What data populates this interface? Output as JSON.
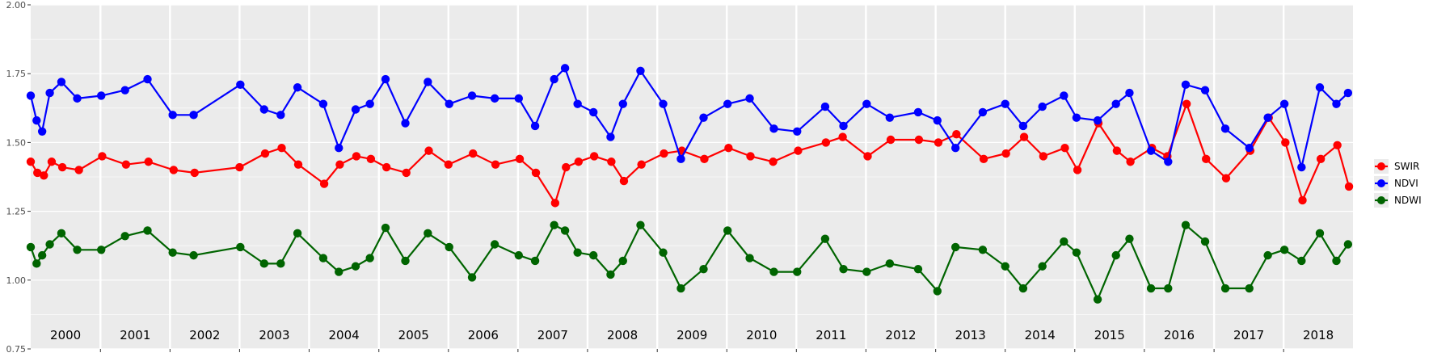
{
  "chart_data": {
    "type": "line",
    "title": "",
    "xlabel": "",
    "ylabel": "",
    "xlim": [
      "2000-01-01",
      "2018-12-31"
    ],
    "ylim": [
      0.75,
      2.0
    ],
    "y_ticks": [
      "0.75",
      "1.00",
      "1.25",
      "1.50",
      "1.75",
      "2.00"
    ],
    "year_labels": [
      "2000",
      "2001",
      "2002",
      "2003",
      "2004",
      "2005",
      "2006",
      "2007",
      "2008",
      "2009",
      "2010",
      "2011",
      "2012",
      "2013",
      "2014",
      "2015",
      "2016",
      "2017",
      "2018"
    ],
    "grid": true,
    "legend_position": "right",
    "series": [
      {
        "name": "SWIR",
        "color": "#ff0000",
        "x": [
          "2000-01-01",
          "2000-02-05",
          "2000-03-10",
          "2000-04-20",
          "2000-06-15",
          "2000-09-10",
          "2001-01-10",
          "2001-05-15",
          "2001-09-10",
          "2002-01-20",
          "2002-05-10",
          "2003-01-01",
          "2003-05-15",
          "2003-08-10",
          "2003-11-05",
          "2004-03-20",
          "2004-06-10",
          "2004-09-05",
          "2004-11-20",
          "2005-02-10",
          "2005-05-25",
          "2005-09-20",
          "2006-01-01",
          "2006-05-10",
          "2006-09-05",
          "2007-01-10",
          "2007-04-05",
          "2007-07-15",
          "2007-09-10",
          "2007-11-15",
          "2008-02-05",
          "2008-05-05",
          "2008-07-10",
          "2008-10-10",
          "2009-02-05",
          "2009-05-10",
          "2009-09-05",
          "2010-01-10",
          "2010-05-05",
          "2010-09-01",
          "2011-01-10",
          "2011-06-05",
          "2011-09-01",
          "2012-01-10",
          "2012-05-10",
          "2012-10-05",
          "2013-01-15",
          "2013-04-20",
          "2013-09-10",
          "2014-01-05",
          "2014-04-10",
          "2014-07-20",
          "2014-11-10",
          "2015-01-15",
          "2015-05-05",
          "2015-08-10",
          "2015-10-20",
          "2016-02-10",
          "2016-05-01",
          "2016-08-10",
          "2016-11-20",
          "2017-03-05",
          "2017-07-10",
          "2017-10-15",
          "2018-01-10",
          "2018-04-10",
          "2018-07-15",
          "2018-10-10",
          "2018-12-10"
        ],
        "y": [
          1.43,
          1.39,
          1.38,
          1.43,
          1.41,
          1.4,
          1.45,
          1.42,
          1.43,
          1.4,
          1.39,
          1.41,
          1.46,
          1.48,
          1.42,
          1.35,
          1.42,
          1.45,
          1.44,
          1.41,
          1.39,
          1.47,
          1.42,
          1.46,
          1.42,
          1.44,
          1.39,
          1.28,
          1.41,
          1.43,
          1.45,
          1.43,
          1.36,
          1.42,
          1.46,
          1.47,
          1.44,
          1.48,
          1.45,
          1.43,
          1.47,
          1.5,
          1.52,
          1.45,
          1.51,
          1.51,
          1.5,
          1.53,
          1.44,
          1.46,
          1.52,
          1.45,
          1.48,
          1.4,
          1.57,
          1.47,
          1.43,
          1.48,
          1.45,
          1.64,
          1.44,
          1.37,
          1.47,
          1.59,
          1.5,
          1.29,
          1.44,
          1.49,
          1.34
        ]
      },
      {
        "name": "NDVI",
        "color": "#0000ff",
        "x": [
          "2000-01-01",
          "2000-02-01",
          "2000-03-01",
          "2000-04-10",
          "2000-06-10",
          "2000-09-01",
          "2001-01-05",
          "2001-05-10",
          "2001-09-05",
          "2002-01-15",
          "2002-05-05",
          "2003-01-05",
          "2003-05-10",
          "2003-08-05",
          "2003-11-01",
          "2004-03-15",
          "2004-06-05",
          "2004-09-01",
          "2004-11-15",
          "2005-02-05",
          "2005-05-20",
          "2005-09-15",
          "2006-01-05",
          "2006-05-05",
          "2006-09-01",
          "2007-01-05",
          "2007-04-01",
          "2007-07-10",
          "2007-09-05",
          "2007-11-10",
          "2008-02-01",
          "2008-05-01",
          "2008-07-05",
          "2008-10-05",
          "2009-02-01",
          "2009-05-05",
          "2009-09-01",
          "2010-01-05",
          "2010-05-01",
          "2010-09-05",
          "2011-01-05",
          "2011-06-01",
          "2011-09-05",
          "2012-01-05",
          "2012-05-05",
          "2012-10-01",
          "2013-01-10",
          "2013-04-15",
          "2013-09-05",
          "2014-01-01",
          "2014-04-05",
          "2014-07-15",
          "2014-11-05",
          "2015-01-10",
          "2015-05-01",
          "2015-08-05",
          "2015-10-15",
          "2016-02-05",
          "2016-05-05",
          "2016-08-05",
          "2016-11-15",
          "2017-03-01",
          "2017-07-05",
          "2017-10-10",
          "2018-01-05",
          "2018-04-05",
          "2018-07-10",
          "2018-10-05",
          "2018-12-05"
        ],
        "y": [
          1.67,
          1.58,
          1.54,
          1.68,
          1.72,
          1.66,
          1.67,
          1.69,
          1.73,
          1.6,
          1.6,
          1.71,
          1.62,
          1.6,
          1.7,
          1.64,
          1.48,
          1.62,
          1.64,
          1.73,
          1.57,
          1.72,
          1.64,
          1.67,
          1.66,
          1.66,
          1.56,
          1.73,
          1.77,
          1.64,
          1.61,
          1.52,
          1.64,
          1.76,
          1.64,
          1.44,
          1.59,
          1.64,
          1.66,
          1.55,
          1.54,
          1.63,
          1.56,
          1.64,
          1.59,
          1.61,
          1.58,
          1.48,
          1.61,
          1.64,
          1.56,
          1.63,
          1.67,
          1.59,
          1.58,
          1.64,
          1.68,
          1.47,
          1.43,
          1.71,
          1.69,
          1.55,
          1.48,
          1.59,
          1.64,
          1.41,
          1.7,
          1.64,
          1.68
        ]
      },
      {
        "name": "NDWI",
        "color": "#006400",
        "x": [
          "2000-01-01",
          "2000-02-01",
          "2000-03-01",
          "2000-04-10",
          "2000-06-10",
          "2000-09-01",
          "2001-01-05",
          "2001-05-10",
          "2001-09-05",
          "2002-01-15",
          "2002-05-05",
          "2003-01-05",
          "2003-05-10",
          "2003-08-05",
          "2003-11-01",
          "2004-03-15",
          "2004-06-05",
          "2004-09-01",
          "2004-11-15",
          "2005-02-05",
          "2005-05-20",
          "2005-09-15",
          "2006-01-05",
          "2006-05-05",
          "2006-09-01",
          "2007-01-05",
          "2007-04-01",
          "2007-07-10",
          "2007-09-05",
          "2007-11-10",
          "2008-02-01",
          "2008-05-01",
          "2008-07-05",
          "2008-10-05",
          "2009-02-01",
          "2009-05-05",
          "2009-09-01",
          "2010-01-05",
          "2010-05-01",
          "2010-09-05",
          "2011-01-05",
          "2011-06-01",
          "2011-09-05",
          "2012-01-05",
          "2012-05-05",
          "2012-10-01",
          "2013-01-10",
          "2013-04-15",
          "2013-09-05",
          "2014-01-01",
          "2014-04-05",
          "2014-07-15",
          "2014-11-05",
          "2015-01-10",
          "2015-05-01",
          "2015-08-05",
          "2015-10-15",
          "2016-02-05",
          "2016-05-05",
          "2016-08-05",
          "2016-11-15",
          "2017-03-01",
          "2017-07-05",
          "2017-10-10",
          "2018-01-05",
          "2018-04-05",
          "2018-07-10",
          "2018-10-05",
          "2018-12-05"
        ],
        "y": [
          1.12,
          1.06,
          1.09,
          1.13,
          1.17,
          1.11,
          1.11,
          1.16,
          1.18,
          1.1,
          1.09,
          1.12,
          1.06,
          1.06,
          1.17,
          1.08,
          1.03,
          1.05,
          1.08,
          1.19,
          1.07,
          1.17,
          1.12,
          1.01,
          1.13,
          1.09,
          1.07,
          1.2,
          1.18,
          1.1,
          1.09,
          1.02,
          1.07,
          1.2,
          1.1,
          0.97,
          1.04,
          1.18,
          1.08,
          1.03,
          1.03,
          1.15,
          1.04,
          1.03,
          1.06,
          1.04,
          0.96,
          1.12,
          1.11,
          1.05,
          0.97,
          1.05,
          1.14,
          1.1,
          0.93,
          1.09,
          1.15,
          0.97,
          0.97,
          1.2,
          1.14,
          0.97,
          0.97,
          1.09,
          1.11,
          1.07,
          1.17,
          1.07,
          1.13
        ]
      }
    ]
  }
}
